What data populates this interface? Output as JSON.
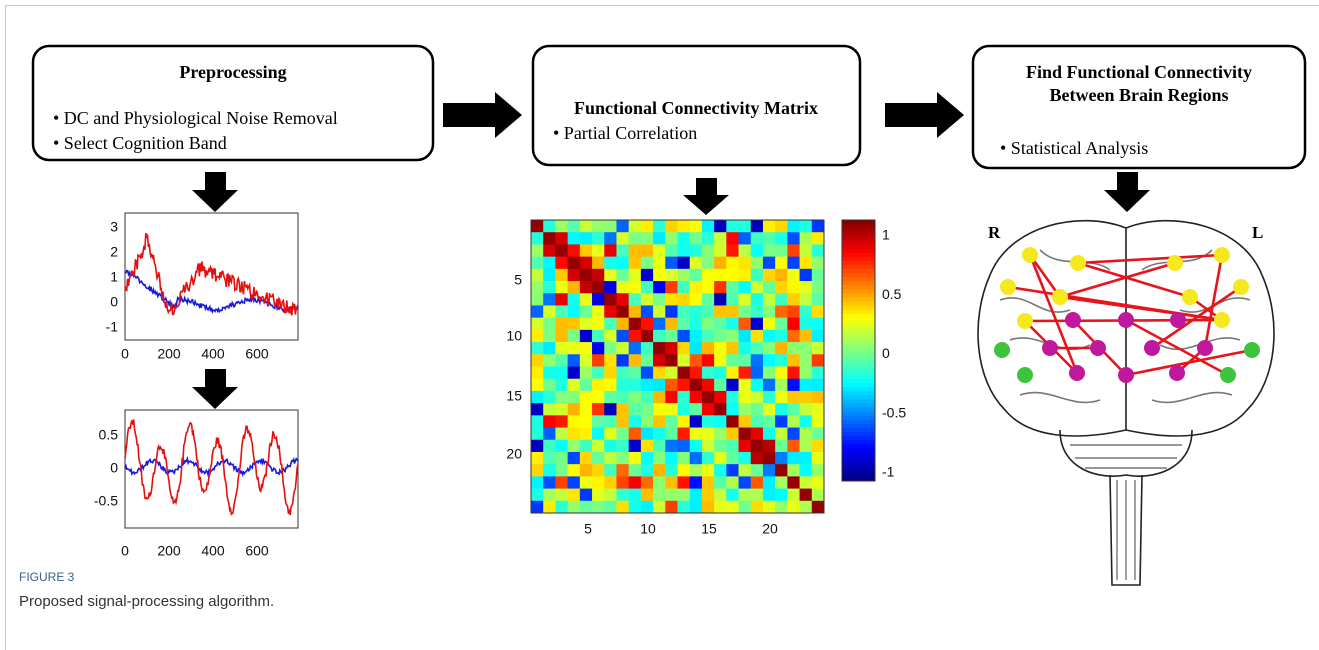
{
  "boxes": [
    {
      "title": [
        "Preprocessing"
      ],
      "bullets": [
        "• DC and Physiological Noise Removal",
        "• Select Cognition Band"
      ]
    },
    {
      "title": [
        "Functional Connectivity Matrix"
      ],
      "bullets": [
        "• Partial Correlation"
      ]
    },
    {
      "title": [
        "Find Functional Connectivity",
        "Between Brain Regions"
      ],
      "bullets": [
        "• Statistical Analysis"
      ]
    }
  ],
  "plots": [
    {
      "yticks": [
        3,
        2,
        1,
        0,
        -1
      ],
      "xticks": [
        0,
        200,
        400,
        600
      ]
    },
    {
      "yticks": [
        0.5,
        0,
        -0.5
      ],
      "xticks": [
        0,
        200,
        400,
        600
      ]
    }
  ],
  "matrix": {
    "yticks": [
      5,
      10,
      15,
      20
    ],
    "xticks": [
      5,
      10,
      15,
      20
    ],
    "colorbar_ticks": [
      1,
      0.5,
      0,
      -0.5,
      -1
    ]
  },
  "brain": {
    "right_label": "R",
    "left_label": "L"
  },
  "caption": {
    "label": "FIGURE 3",
    "text": "Proposed signal-processing algorithm."
  }
}
